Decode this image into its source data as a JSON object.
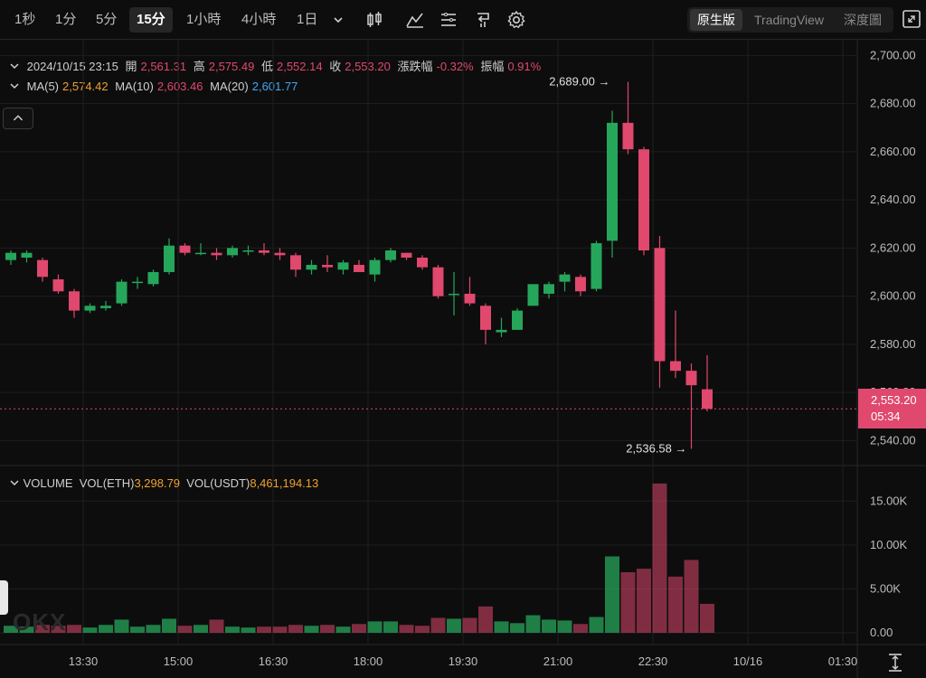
{
  "toolbar": {
    "timeframes": [
      "1秒",
      "1分",
      "5分",
      "15分",
      "1小時",
      "4小時",
      "1日"
    ],
    "views": [
      "原生版",
      "TradingView",
      "深度圖"
    ]
  },
  "info": {
    "datetime": "2024/10/15 23:15",
    "open_label": "開",
    "open": "2,561.31",
    "high_label": "高",
    "high": "2,575.49",
    "low_label": "低",
    "low": "2,552.14",
    "close_label": "收",
    "close": "2,553.20",
    "change_label": "漲跌幅",
    "change": "-0.32%",
    "amp_label": "振幅",
    "amp": "0.91%"
  },
  "ma": {
    "ma5_label": "MA(5)",
    "ma5": "2,574.42",
    "ma10_label": "MA(10)",
    "ma10": "2,603.46",
    "ma20_label": "MA(20)",
    "ma20": "2,601.77"
  },
  "volume_info": {
    "label": "VOLUME",
    "eth_label": "VOL(ETH)",
    "eth": "3,298.79",
    "usdt_label": "VOL(USDT)",
    "usdt": "8,461,194.13"
  },
  "current": {
    "price": "2,553.20",
    "countdown": "05:34"
  },
  "watermark": "OKX",
  "colors": {
    "up": "#26a65b",
    "down": "#e0486e",
    "bg": "#0d0d0d",
    "grid": "#1e1e1e"
  },
  "chart_data": {
    "type": "candlestick",
    "price_axis": {
      "min": 2530,
      "max": 2705,
      "ticks": [
        "2,700.00",
        "2,680.00",
        "2,660.00",
        "2,640.00",
        "2,620.00",
        "2,600.00",
        "2,580.00",
        "2,560.00",
        "2,540.00"
      ],
      "tick_values": [
        2700,
        2680,
        2660,
        2640,
        2620,
        2600,
        2580,
        2560,
        2540
      ]
    },
    "volume_axis": {
      "min": 0,
      "max": 17500,
      "ticks": [
        "15.00K",
        "10.00K",
        "5.00K",
        "0.00"
      ],
      "tick_values": [
        15000,
        10000,
        5000,
        0
      ]
    },
    "x_ticks": [
      "13:30",
      "15:00",
      "16:30",
      "18:00",
      "19:30",
      "21:00",
      "22:30",
      "10/16",
      "01:30"
    ],
    "x_tick_index": [
      4,
      10,
      16,
      22,
      28,
      34,
      40,
      46,
      52
    ],
    "high_label": "2,689.00",
    "low_label": "2,536.58",
    "candles": [
      {
        "o": 2615,
        "h": 2619,
        "l": 2613,
        "c": 2618,
        "v": 800
      },
      {
        "o": 2616,
        "h": 2619,
        "l": 2614,
        "c": 2618,
        "v": 700
      },
      {
        "o": 2615,
        "h": 2616,
        "l": 2606,
        "c": 2608,
        "v": 900
      },
      {
        "o": 2607,
        "h": 2609,
        "l": 2601,
        "c": 2602,
        "v": 800
      },
      {
        "o": 2602,
        "h": 2603,
        "l": 2591,
        "c": 2594,
        "v": 900
      },
      {
        "o": 2594,
        "h": 2597,
        "l": 2593,
        "c": 2596,
        "v": 600
      },
      {
        "o": 2595,
        "h": 2598,
        "l": 2594,
        "c": 2596,
        "v": 900
      },
      {
        "o": 2597,
        "h": 2607,
        "l": 2596,
        "c": 2606,
        "v": 1500
      },
      {
        "o": 2606,
        "h": 2608,
        "l": 2603,
        "c": 2606,
        "v": 700
      },
      {
        "o": 2605,
        "h": 2611,
        "l": 2604,
        "c": 2610,
        "v": 900
      },
      {
        "o": 2610,
        "h": 2624,
        "l": 2609,
        "c": 2621,
        "v": 1600
      },
      {
        "o": 2621,
        "h": 2622,
        "l": 2617,
        "c": 2618,
        "v": 800
      },
      {
        "o": 2618,
        "h": 2622,
        "l": 2617,
        "c": 2618,
        "v": 900
      },
      {
        "o": 2618,
        "h": 2620,
        "l": 2615,
        "c": 2617,
        "v": 1500
      },
      {
        "o": 2617,
        "h": 2621,
        "l": 2616,
        "c": 2620,
        "v": 700
      },
      {
        "o": 2619,
        "h": 2621,
        "l": 2617,
        "c": 2619,
        "v": 600
      },
      {
        "o": 2619,
        "h": 2622,
        "l": 2617,
        "c": 2618,
        "v": 700
      },
      {
        "o": 2618,
        "h": 2620,
        "l": 2615,
        "c": 2617,
        "v": 700
      },
      {
        "o": 2617,
        "h": 2618,
        "l": 2608,
        "c": 2611,
        "v": 900
      },
      {
        "o": 2611,
        "h": 2615,
        "l": 2609,
        "c": 2613,
        "v": 800
      },
      {
        "o": 2613,
        "h": 2617,
        "l": 2610,
        "c": 2612,
        "v": 900
      },
      {
        "o": 2611,
        "h": 2615,
        "l": 2609,
        "c": 2614,
        "v": 700
      },
      {
        "o": 2613,
        "h": 2615,
        "l": 2610,
        "c": 2610,
        "v": 1000
      },
      {
        "o": 2609,
        "h": 2616,
        "l": 2606,
        "c": 2615,
        "v": 1300
      },
      {
        "o": 2615,
        "h": 2620,
        "l": 2614,
        "c": 2619,
        "v": 1300
      },
      {
        "o": 2618,
        "h": 2618,
        "l": 2615,
        "c": 2616,
        "v": 900
      },
      {
        "o": 2616,
        "h": 2617,
        "l": 2611,
        "c": 2612,
        "v": 800
      },
      {
        "o": 2612,
        "h": 2613,
        "l": 2599,
        "c": 2600,
        "v": 1700
      },
      {
        "o": 2601,
        "h": 2610,
        "l": 2592,
        "c": 2601,
        "v": 1600
      },
      {
        "o": 2601,
        "h": 2608,
        "l": 2596,
        "c": 2597,
        "v": 1700
      },
      {
        "o": 2596,
        "h": 2597,
        "l": 2580,
        "c": 2586,
        "v": 3000
      },
      {
        "o": 2585,
        "h": 2591,
        "l": 2583,
        "c": 2586,
        "v": 1300
      },
      {
        "o": 2586,
        "h": 2595,
        "l": 2586,
        "c": 2594,
        "v": 1100
      },
      {
        "o": 2596,
        "h": 2604,
        "l": 2596,
        "c": 2605,
        "v": 2000
      },
      {
        "o": 2601,
        "h": 2606,
        "l": 2599,
        "c": 2605,
        "v": 1500
      },
      {
        "o": 2606,
        "h": 2610,
        "l": 2602,
        "c": 2609,
        "v": 1400
      },
      {
        "o": 2608,
        "h": 2609,
        "l": 2600,
        "c": 2602,
        "v": 1000
      },
      {
        "o": 2603,
        "h": 2623,
        "l": 2602,
        "c": 2622,
        "v": 1800
      },
      {
        "o": 2623,
        "h": 2677,
        "l": 2616,
        "c": 2672,
        "v": 8700
      },
      {
        "o": 2672,
        "h": 2689,
        "l": 2659,
        "c": 2661,
        "v": 6900
      },
      {
        "o": 2661,
        "h": 2662,
        "l": 2617,
        "c": 2619,
        "v": 7300
      },
      {
        "o": 2620,
        "h": 2625,
        "l": 2562,
        "c": 2573,
        "v": 17000
      },
      {
        "o": 2573,
        "h": 2594,
        "l": 2566,
        "c": 2569,
        "v": 6400
      },
      {
        "o": 2569,
        "h": 2572,
        "l": 2536.58,
        "c": 2563,
        "v": 8300
      },
      {
        "o": 2561.31,
        "h": 2575.49,
        "l": 2552.14,
        "c": 2553.2,
        "v": 3300
      }
    ]
  }
}
